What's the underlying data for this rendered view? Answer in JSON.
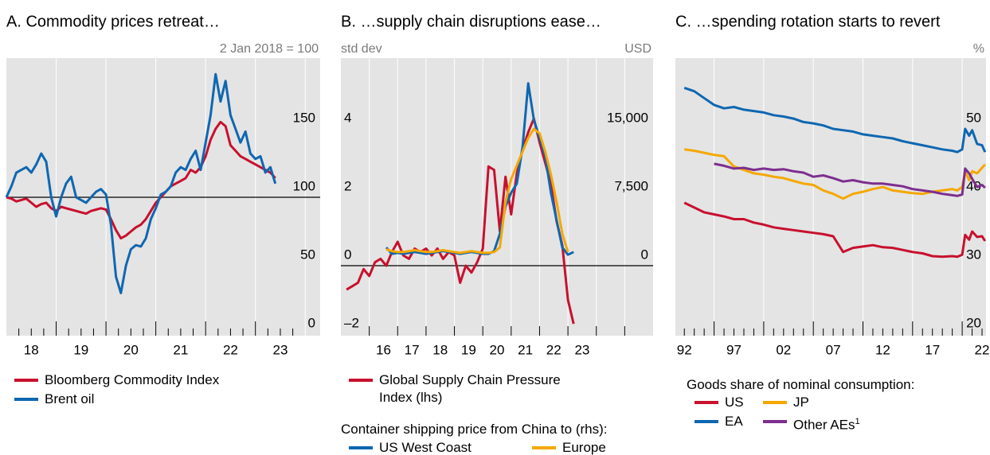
{
  "chart_data": [
    {
      "type": "line",
      "title": "A. Commodity prices retreat…",
      "unit_label": "2 Jan 2018 = 100",
      "x": [
        2018,
        2018.1,
        2018.2,
        2018.3,
        2018.4,
        2018.5,
        2018.6,
        2018.7,
        2018.8,
        2018.9,
        2019,
        2019.1,
        2019.2,
        2019.3,
        2019.4,
        2019.5,
        2019.6,
        2019.7,
        2019.8,
        2019.9,
        2020,
        2020.1,
        2020.2,
        2020.3,
        2020.4,
        2020.5,
        2020.6,
        2020.7,
        2020.8,
        2020.9,
        2021,
        2021.1,
        2021.2,
        2021.3,
        2021.4,
        2021.5,
        2021.6,
        2021.7,
        2021.8,
        2021.9,
        2022,
        2022.1,
        2022.2,
        2022.3,
        2022.4,
        2022.5,
        2022.6,
        2022.7,
        2022.8,
        2022.9,
        2023,
        2023.1,
        2023.2,
        2023.3,
        2023.4
      ],
      "xlim": [
        2018,
        2024.3
      ],
      "xticks": [
        {
          "value": 2018.5,
          "label": "18"
        },
        {
          "value": 2019.5,
          "label": "19"
        },
        {
          "value": 2020.5,
          "label": "20"
        },
        {
          "value": 2021.5,
          "label": "21"
        },
        {
          "value": 2022.5,
          "label": "22"
        },
        {
          "value": 2023.5,
          "label": "23"
        }
      ],
      "ylim": [
        0,
        200
      ],
      "yticks": [
        0,
        50,
        100,
        150
      ],
      "reference_line": 100,
      "series": [
        {
          "name": "Bloomberg Commodity Index",
          "color": "#c8102e",
          "values": [
            100,
            99,
            97,
            98,
            99,
            96,
            93,
            95,
            96,
            92,
            90,
            93,
            92,
            91,
            90,
            89,
            88,
            90,
            91,
            92,
            91,
            84,
            76,
            70,
            72,
            75,
            78,
            80,
            84,
            90,
            96,
            100,
            104,
            108,
            110,
            112,
            114,
            120,
            118,
            122,
            130,
            142,
            150,
            155,
            152,
            138,
            134,
            130,
            128,
            126,
            124,
            122,
            120,
            118,
            114
          ]
        },
        {
          "name": "Brent oil",
          "color": "#0f67b1",
          "values": [
            100,
            108,
            118,
            120,
            122,
            118,
            124,
            132,
            126,
            100,
            86,
            100,
            110,
            115,
            100,
            98,
            96,
            100,
            104,
            106,
            102,
            80,
            42,
            30,
            50,
            62,
            65,
            64,
            70,
            84,
            92,
            102,
            104,
            108,
            118,
            122,
            120,
            128,
            134,
            120,
            140,
            160,
            190,
            170,
            185,
            160,
            150,
            140,
            148,
            132,
            128,
            130,
            118,
            122,
            110
          ]
        }
      ]
    },
    {
      "type": "line",
      "title": "B. …supply chain disruptions ease…",
      "y_label": "std dev",
      "y2_label": "USD",
      "x": [
        2015.2,
        2015.4,
        2015.6,
        2015.8,
        2016,
        2016.2,
        2016.4,
        2016.6,
        2016.8,
        2017,
        2017.2,
        2017.4,
        2017.6,
        2017.8,
        2018,
        2018.2,
        2018.4,
        2018.6,
        2018.8,
        2019,
        2019.2,
        2019.4,
        2019.6,
        2019.8,
        2020,
        2020.2,
        2020.4,
        2020.6,
        2020.8,
        2021,
        2021.2,
        2021.4,
        2021.6,
        2021.8,
        2022,
        2022.2,
        2022.4,
        2022.6,
        2022.8,
        2023,
        2023.2
      ],
      "xlim": [
        2015,
        2026
      ],
      "xticks": [
        {
          "value": 2016.5,
          "label": "16"
        },
        {
          "value": 2017.5,
          "label": "17"
        },
        {
          "value": 2018.5,
          "label": "18"
        },
        {
          "value": 2019.5,
          "label": "19"
        },
        {
          "value": 2020.5,
          "label": "20"
        },
        {
          "value": 2021.5,
          "label": "21"
        },
        {
          "value": 2022.5,
          "label": "22"
        },
        {
          "value": 2023.5,
          "label": "23"
        }
      ],
      "ylim": [
        -2,
        6
      ],
      "yticks": [
        {
          "value": -2,
          "label": "–2"
        },
        0,
        2,
        4
      ],
      "y2lim": [
        -7500,
        22500
      ],
      "y2ticks": [
        0,
        {
          "value": 7500,
          "label": "7,500"
        },
        {
          "value": 15000,
          "label": "15,000"
        }
      ],
      "reference_line": 0,
      "legend_title": "Container shipping price from China to (rhs):",
      "series": [
        {
          "name": "Global Supply Chain Pressure Index (lhs)",
          "color": "#c8102e",
          "values": [
            -0.7,
            -0.6,
            -0.5,
            -0.1,
            -0.3,
            0.1,
            0.2,
            0.0,
            0.4,
            0.7,
            0.3,
            0.2,
            0.5,
            0.4,
            0.5,
            0.3,
            0.5,
            0.2,
            0.4,
            0.3,
            -0.5,
            0.0,
            -0.2,
            0.1,
            0.5,
            2.9,
            2.8,
            1.0,
            2.6,
            1.5,
            2.7,
            3.4,
            3.9,
            4.3,
            3.6,
            3.0,
            2.4,
            1.3,
            0.6,
            -1.0,
            -1.7
          ]
        },
        {
          "name": "US West Coast",
          "color": "#0f67b1",
          "axis": "y2",
          "values": [
            null,
            null,
            null,
            null,
            null,
            null,
            null,
            2000,
            1300,
            1400,
            1300,
            1400,
            1500,
            1400,
            1300,
            1400,
            1500,
            1600,
            1500,
            1400,
            1300,
            1400,
            1500,
            1400,
            1300,
            1300,
            1600,
            3500,
            6500,
            8000,
            9000,
            13000,
            20000,
            16000,
            14000,
            12000,
            8000,
            5000,
            2000,
            1200,
            1500
          ]
        },
        {
          "name": "Europe",
          "color": "#f5a800",
          "axis": "y2",
          "values": [
            null,
            null,
            null,
            null,
            null,
            null,
            null,
            1800,
            1600,
            1500,
            1500,
            1600,
            1700,
            1600,
            1500,
            1500,
            1600,
            1700,
            1600,
            1500,
            1400,
            1500,
            1600,
            1500,
            1400,
            1400,
            1500,
            2000,
            7000,
            9500,
            11000,
            12500,
            14000,
            15000,
            14500,
            12500,
            10000,
            7000,
            3500,
            1500,
            null
          ]
        }
      ]
    },
    {
      "type": "line",
      "title": "C. …spending rotation starts to revert",
      "unit_label": "%",
      "x": [
        1992,
        1993,
        1994,
        1995,
        1996,
        1997,
        1998,
        1999,
        2000,
        2001,
        2002,
        2003,
        2004,
        2005,
        2006,
        2007,
        2008,
        2009,
        2010,
        2011,
        2012,
        2013,
        2014,
        2015,
        2016,
        2017,
        2018,
        2019,
        2019.5,
        2020,
        2020.3,
        2020.7,
        2021,
        2021.5,
        2022,
        2022.3
      ],
      "xlim": [
        1991.1,
        2022.4
      ],
      "xticks": [
        {
          "value": 1992,
          "label": "92"
        },
        {
          "value": 1997,
          "label": "97"
        },
        {
          "value": 2002,
          "label": "02"
        },
        {
          "value": 2007,
          "label": "07"
        },
        {
          "value": 2012,
          "label": "12"
        },
        {
          "value": 2017,
          "label": "17"
        },
        {
          "value": 2022,
          "label": "22"
        }
      ],
      "ylim": [
        20,
        60
      ],
      "yticks": [
        20,
        30,
        40,
        50
      ],
      "legend_title": "Goods share of nominal consumption:",
      "series": [
        {
          "name": "US",
          "color": "#c8102e",
          "values": [
            39.2,
            38.5,
            37.8,
            37.5,
            37.2,
            36.8,
            36.8,
            36.3,
            36.0,
            35.6,
            35.4,
            35.2,
            35.0,
            34.8,
            34.6,
            34.3,
            32.0,
            32.6,
            32.8,
            33.0,
            32.7,
            32.6,
            32.3,
            32.0,
            31.8,
            31.4,
            31.3,
            31.4,
            31.3,
            31.6,
            34.5,
            33.8,
            35.0,
            34.2,
            34.3,
            33.6
          ]
        },
        {
          "name": "EA",
          "color": "#0f67b1",
          "values": [
            56.0,
            55.5,
            54.5,
            53.5,
            53.0,
            53.2,
            52.8,
            52.6,
            52.4,
            52.0,
            51.8,
            51.5,
            51.0,
            50.8,
            50.5,
            50.0,
            49.8,
            49.6,
            49.2,
            49.0,
            48.8,
            48.6,
            48.2,
            47.9,
            47.6,
            47.3,
            47.0,
            46.8,
            46.6,
            47.0,
            50.0,
            49.0,
            49.8,
            47.8,
            47.6,
            46.6
          ]
        },
        {
          "name": "JP",
          "color": "#f5a800",
          "values": [
            47.0,
            46.8,
            46.5,
            46.2,
            46.0,
            44.5,
            44.0,
            43.5,
            43.3,
            43.0,
            42.8,
            42.4,
            42.0,
            41.8,
            41.0,
            40.5,
            39.8,
            40.5,
            40.8,
            41.2,
            41.5,
            41.0,
            40.8,
            40.6,
            40.5,
            40.8,
            41.0,
            41.2,
            41.0,
            41.5,
            43.8,
            42.5,
            43.8,
            43.5,
            44.3,
            44.8
          ]
        },
        {
          "name": "Other AEs",
          "note": "1",
          "color": "#7d2e8f",
          "values": [
            null,
            null,
            null,
            44.9,
            44.6,
            44.2,
            44.3,
            44.0,
            44.2,
            44.0,
            44.1,
            43.8,
            43.6,
            43.0,
            43.2,
            42.8,
            42.3,
            42.5,
            42.2,
            42.0,
            42.0,
            41.8,
            41.6,
            41.2,
            41.0,
            40.8,
            40.5,
            40.3,
            40.2,
            40.4,
            44.2,
            43.5,
            42.7,
            41.5,
            41.8,
            41.4
          ]
        }
      ]
    }
  ]
}
